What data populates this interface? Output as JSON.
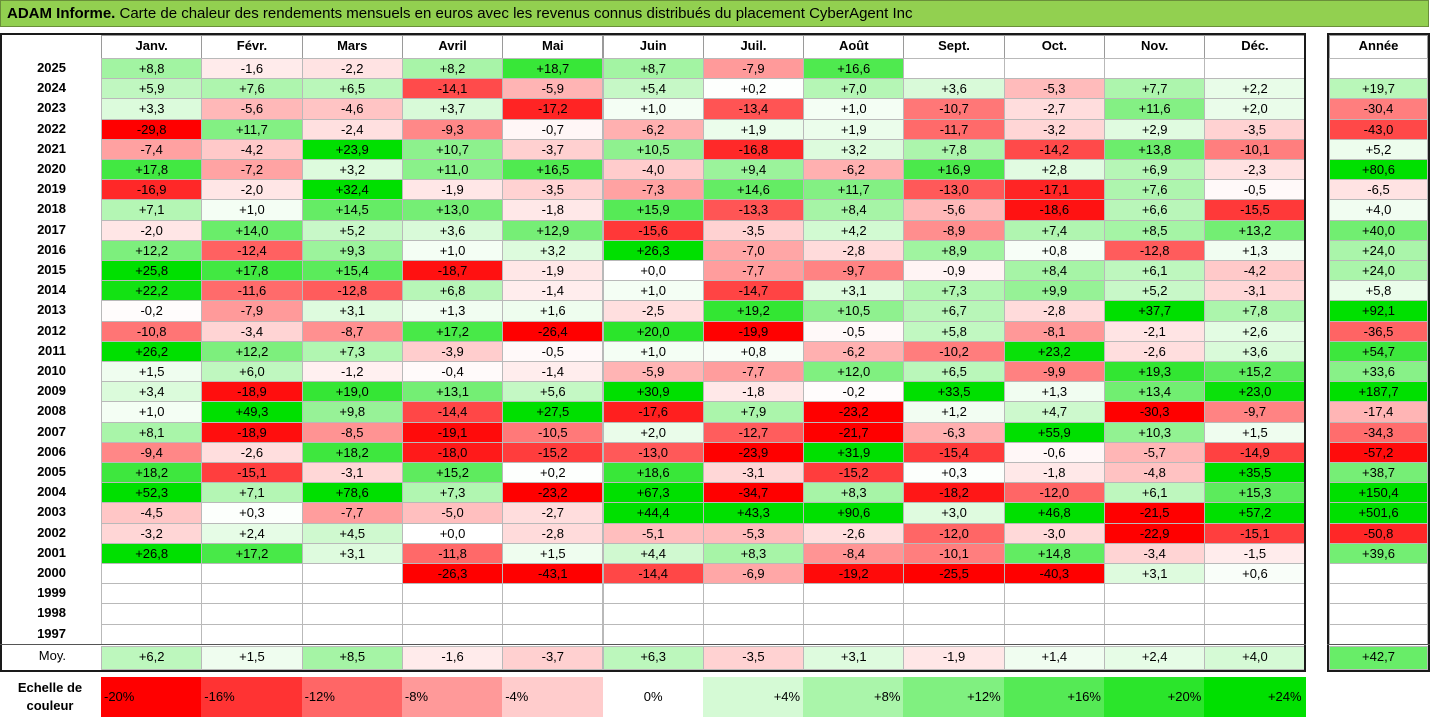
{
  "title": {
    "lead": "ADAM Informe.",
    "rest": " Carte de chaleur des rendements mensuels en euros avec les revenus connus distribués du placement CyberAgent Inc"
  },
  "chart_data": {
    "type": "heatmap",
    "months": [
      "Janv.",
      "Févr.",
      "Mars",
      "Avril",
      "Mai",
      "Juin",
      "Juil.",
      "Août",
      "Sept.",
      "Oct.",
      "Nov.",
      "Déc."
    ],
    "year_header": "Année",
    "rows": [
      {
        "year": "2025",
        "values": [
          "+8,8",
          "-1,6",
          "-2,2",
          "+8,2",
          "+18,7",
          "+8,7",
          "-7,9",
          "+16,6",
          "",
          "",
          "",
          ""
        ],
        "annual": ""
      },
      {
        "year": "2024",
        "values": [
          "+5,9",
          "+7,6",
          "+6,5",
          "-14,1",
          "-5,9",
          "+5,4",
          "+0,2",
          "+7,0",
          "+3,6",
          "-5,3",
          "+7,7",
          "+2,2"
        ],
        "annual": "+19,7"
      },
      {
        "year": "2023",
        "values": [
          "+3,3",
          "-5,6",
          "-4,6",
          "+3,7",
          "-17,2",
          "+1,0",
          "-13,4",
          "+1,0",
          "-10,7",
          "-2,7",
          "+11,6",
          "+2,0"
        ],
        "annual": "-30,4"
      },
      {
        "year": "2022",
        "values": [
          "-29,8",
          "+11,7",
          "-2,4",
          "-9,3",
          "-0,7",
          "-6,2",
          "+1,9",
          "+1,9",
          "-11,7",
          "-3,2",
          "+2,9",
          "-3,5"
        ],
        "annual": "-43,0"
      },
      {
        "year": "2021",
        "values": [
          "-7,4",
          "-4,2",
          "+23,9",
          "+10,7",
          "-3,7",
          "+10,5",
          "-16,8",
          "+3,2",
          "+7,8",
          "-14,2",
          "+13,8",
          "-10,1"
        ],
        "annual": "+5,2"
      },
      {
        "year": "2020",
        "values": [
          "+17,8",
          "-7,2",
          "+3,2",
          "+11,0",
          "+16,5",
          "-4,0",
          "+9,4",
          "-6,2",
          "+16,9",
          "+2,8",
          "+6,9",
          "-2,3"
        ],
        "annual": "+80,6"
      },
      {
        "year": "2019",
        "values": [
          "-16,9",
          "-2,0",
          "+32,4",
          "-1,9",
          "-3,5",
          "-7,3",
          "+14,6",
          "+11,7",
          "-13,0",
          "-17,1",
          "+7,6",
          "-0,5"
        ],
        "annual": "-6,5"
      },
      {
        "year": "2018",
        "values": [
          "+7,1",
          "+1,0",
          "+14,5",
          "+13,0",
          "-1,8",
          "+15,9",
          "-13,3",
          "+8,4",
          "-5,6",
          "-18,6",
          "+6,6",
          "-15,5"
        ],
        "annual": "+4,0"
      },
      {
        "year": "2017",
        "values": [
          "-2,0",
          "+14,0",
          "+5,2",
          "+3,6",
          "+12,9",
          "-15,6",
          "-3,5",
          "+4,2",
          "-8,9",
          "+7,4",
          "+8,5",
          "+13,2"
        ],
        "annual": "+40,0"
      },
      {
        "year": "2016",
        "values": [
          "+12,2",
          "-12,4",
          "+9,3",
          "+1,0",
          "+3,2",
          "+26,3",
          "-7,0",
          "-2,8",
          "+8,9",
          "+0,8",
          "-12,8",
          "+1,3"
        ],
        "annual": "+24,0"
      },
      {
        "year": "2015",
        "values": [
          "+25,8",
          "+17,8",
          "+15,4",
          "-18,7",
          "-1,9",
          "+0,0",
          "-7,7",
          "-9,7",
          "-0,9",
          "+8,4",
          "+6,1",
          "-4,2"
        ],
        "annual": "+24,0"
      },
      {
        "year": "2014",
        "values": [
          "+22,2",
          "-11,6",
          "-12,8",
          "+6,8",
          "-1,4",
          "+1,0",
          "-14,7",
          "+3,1",
          "+7,3",
          "+9,9",
          "+5,2",
          "-3,1"
        ],
        "annual": "+5,8"
      },
      {
        "year": "2013",
        "values": [
          "-0,2",
          "-7,9",
          "+3,1",
          "+1,3",
          "+1,6",
          "-2,5",
          "+19,2",
          "+10,5",
          "+6,7",
          "-2,8",
          "+37,7",
          "+7,8"
        ],
        "annual": "+92,1"
      },
      {
        "year": "2012",
        "values": [
          "-10,8",
          "-3,4",
          "-8,7",
          "+17,2",
          "-26,4",
          "+20,0",
          "-19,9",
          "-0,5",
          "+5,8",
          "-8,1",
          "-2,1",
          "+2,6"
        ],
        "annual": "-36,5"
      },
      {
        "year": "2011",
        "values": [
          "+26,2",
          "+12,2",
          "+7,3",
          "-3,9",
          "-0,5",
          "+1,0",
          "+0,8",
          "-6,2",
          "-10,2",
          "+23,2",
          "-2,6",
          "+3,6"
        ],
        "annual": "+54,7"
      },
      {
        "year": "2010",
        "values": [
          "+1,5",
          "+6,0",
          "-1,2",
          "-0,4",
          "-1,4",
          "-5,9",
          "-7,7",
          "+12,0",
          "+6,5",
          "-9,9",
          "+19,3",
          "+15,2"
        ],
        "annual": "+33,6"
      },
      {
        "year": "2009",
        "values": [
          "+3,4",
          "-18,9",
          "+19,0",
          "+13,1",
          "+5,6",
          "+30,9",
          "-1,8",
          "-0,2",
          "+33,5",
          "+1,3",
          "+13,4",
          "+23,0"
        ],
        "annual": "+187,7"
      },
      {
        "year": "2008",
        "values": [
          "+1,0",
          "+49,3",
          "+9,8",
          "-14,4",
          "+27,5",
          "-17,6",
          "+7,9",
          "-23,2",
          "+1,2",
          "+4,7",
          "-30,3",
          "-9,7"
        ],
        "annual": "-17,4"
      },
      {
        "year": "2007",
        "values": [
          "+8,1",
          "-18,9",
          "-8,5",
          "-19,1",
          "-10,5",
          "+2,0",
          "-12,7",
          "-21,7",
          "-6,3",
          "+55,9",
          "+10,3",
          "+1,5"
        ],
        "annual": "-34,3"
      },
      {
        "year": "2006",
        "values": [
          "-9,4",
          "-2,6",
          "+18,2",
          "-18,0",
          "-15,2",
          "-13,0",
          "-23,9",
          "+31,9",
          "-15,4",
          "-0,6",
          "-5,7",
          "-14,9"
        ],
        "annual": "-57,2"
      },
      {
        "year": "2005",
        "values": [
          "+18,2",
          "-15,1",
          "-3,1",
          "+15,2",
          "+0,2",
          "+18,6",
          "-3,1",
          "-15,2",
          "+0,3",
          "-1,8",
          "-4,8",
          "+35,5"
        ],
        "annual": "+38,7"
      },
      {
        "year": "2004",
        "values": [
          "+52,3",
          "+7,1",
          "+78,6",
          "+7,3",
          "-23,2",
          "+67,3",
          "-34,7",
          "+8,3",
          "-18,2",
          "-12,0",
          "+6,1",
          "+15,3"
        ],
        "annual": "+150,4"
      },
      {
        "year": "2003",
        "values": [
          "-4,5",
          "+0,3",
          "-7,7",
          "-5,0",
          "-2,7",
          "+44,4",
          "+43,3",
          "+90,6",
          "+3,0",
          "+46,8",
          "-21,5",
          "+57,2"
        ],
        "annual": "+501,6"
      },
      {
        "year": "2002",
        "values": [
          "-3,2",
          "+2,4",
          "+4,5",
          "+0,0",
          "-2,8",
          "-5,1",
          "-5,3",
          "-2,6",
          "-12,0",
          "-3,0",
          "-22,9",
          "-15,1"
        ],
        "annual": "-50,8"
      },
      {
        "year": "2001",
        "values": [
          "+26,8",
          "+17,2",
          "+3,1",
          "-11,8",
          "+1,5",
          "+4,4",
          "+8,3",
          "-8,4",
          "-10,1",
          "+14,8",
          "-3,4",
          "-1,5"
        ],
        "annual": "+39,6"
      },
      {
        "year": "2000",
        "values": [
          "",
          "",
          "",
          "-26,3",
          "-43,1",
          "-14,4",
          "-6,9",
          "-19,2",
          "-25,5",
          "-40,3",
          "+3,1",
          "+0,6"
        ],
        "annual": ""
      },
      {
        "year": "1999",
        "values": [
          "",
          "",
          "",
          "",
          "",
          "",
          "",
          "",
          "",
          "",
          "",
          ""
        ],
        "annual": ""
      },
      {
        "year": "1998",
        "values": [
          "",
          "",
          "",
          "",
          "",
          "",
          "",
          "",
          "",
          "",
          "",
          ""
        ],
        "annual": ""
      },
      {
        "year": "1997",
        "values": [
          "",
          "",
          "",
          "",
          "",
          "",
          "",
          "",
          "",
          "",
          "",
          ""
        ],
        "annual": ""
      }
    ],
    "average": {
      "label": "Moy.",
      "values": [
        "+6,2",
        "+1,5",
        "+8,5",
        "-1,6",
        "-3,7",
        "+6,3",
        "-3,5",
        "+3,1",
        "-1,9",
        "+1,4",
        "+2,4",
        "+4,0"
      ],
      "annual": "+42,7"
    },
    "scale": {
      "label": "Echelle de couleur",
      "stops": [
        "-20%",
        "-16%",
        "-12%",
        "-8%",
        "-4%",
        "0%",
        "+4%",
        "+8%",
        "+12%",
        "+16%",
        "+20%",
        "+24%"
      ]
    }
  },
  "colors": {
    "title_bg": "#92d050",
    "negative_max": "#ff0000",
    "positive_max": "#00e000",
    "neutral": "#ffffff"
  }
}
